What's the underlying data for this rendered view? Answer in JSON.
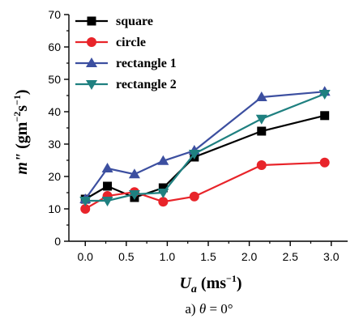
{
  "chart_data": {
    "type": "line",
    "xlabel": "U",
    "xlabel_subscript": "a",
    "xlabel_unit": " (ms",
    "xlabel_unit_sup": "−1",
    "xlabel_unit_end": ")",
    "ylabel": "m\"",
    "ylabel_unit": " (gm",
    "ylabel_unit_sup1": "−2",
    "ylabel_unit_mid": "s",
    "ylabel_unit_sup2": "−1",
    "ylabel_unit_end": ")",
    "caption_prefix": "a) ",
    "caption_symbol": "θ",
    "caption_suffix": " = 0°",
    "xlim": [
      -0.2,
      3.2
    ],
    "ylim": [
      0,
      70
    ],
    "xticks": [
      0.0,
      0.5,
      1.0,
      1.5,
      2.0,
      2.5,
      3.0
    ],
    "xtick_labels": [
      "0.0",
      "0.5",
      "1.0",
      "1.5",
      "2.0",
      "2.5",
      "3.0"
    ],
    "yticks": [
      0,
      10,
      20,
      30,
      40,
      50,
      60,
      70
    ],
    "ytick_labels": [
      "0",
      "10",
      "20",
      "30",
      "40",
      "50",
      "60",
      "70"
    ],
    "grid": false,
    "legend_position": "top-left",
    "series": [
      {
        "name": "square",
        "color": "#000000",
        "marker": "square",
        "x": [
          0.0,
          0.27,
          0.6,
          0.95,
          1.33,
          2.15,
          2.92
        ],
        "y": [
          13.0,
          17.0,
          13.5,
          16.5,
          26.0,
          34.0,
          38.8
        ]
      },
      {
        "name": "circle",
        "color": "#e8242a",
        "marker": "circle",
        "x": [
          0.0,
          0.27,
          0.6,
          0.95,
          1.33,
          2.15,
          2.92
        ],
        "y": [
          10.0,
          14.0,
          15.2,
          12.2,
          13.8,
          23.5,
          24.3
        ]
      },
      {
        "name": "rectangle 1",
        "color": "#3c4fa0",
        "marker": "triangle-up",
        "x": [
          0.0,
          0.27,
          0.6,
          0.95,
          1.33,
          2.15,
          2.92
        ],
        "y": [
          13.0,
          22.5,
          20.7,
          24.8,
          28.0,
          44.5,
          46.2
        ]
      },
      {
        "name": "rectangle 2",
        "color": "#1f8080",
        "marker": "triangle-down",
        "x": [
          0.0,
          0.27,
          0.6,
          0.95,
          1.33,
          2.15,
          2.92
        ],
        "y": [
          12.5,
          12.5,
          14.5,
          15.0,
          27.0,
          37.8,
          45.5
        ]
      }
    ]
  }
}
